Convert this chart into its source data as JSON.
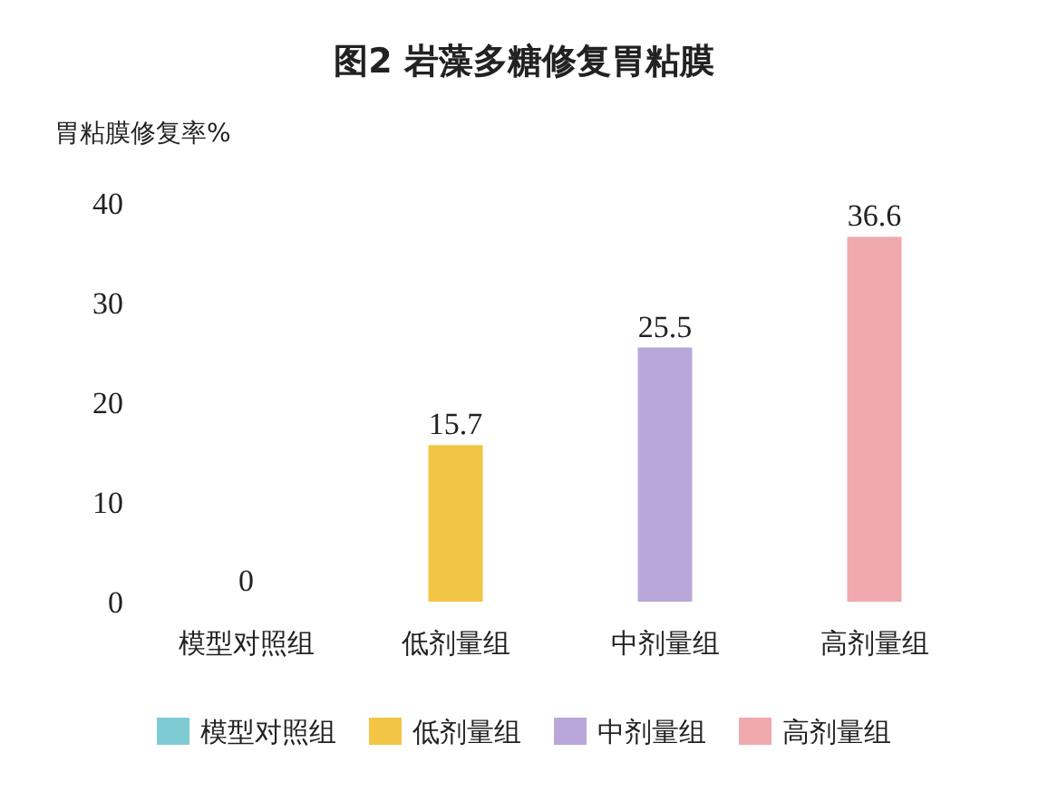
{
  "chart_data": {
    "type": "bar",
    "title": "图2 岩藻多糖修复胃粘膜",
    "ylabel": "胃粘膜修复率%",
    "categories": [
      "模型对照组",
      "低剂量组",
      "中剂量组",
      "高剂量组"
    ],
    "series": [
      {
        "name": "模型对照组",
        "color": "#7ecbd5",
        "values": [
          0,
          null,
          null,
          null
        ]
      },
      {
        "name": "低剂量组",
        "color": "#f2c544",
        "values": [
          null,
          15.7,
          null,
          null
        ]
      },
      {
        "name": "中剂量组",
        "color": "#b9a7d9",
        "values": [
          null,
          null,
          25.5,
          null
        ]
      },
      {
        "name": "高剂量组",
        "color": "#f0a9ad",
        "values": [
          null,
          null,
          null,
          36.6
        ]
      }
    ],
    "ylim": [
      0,
      40
    ],
    "yticks": [
      0,
      10,
      20,
      30,
      40
    ],
    "data_labels": true,
    "legend": "bottom"
  }
}
